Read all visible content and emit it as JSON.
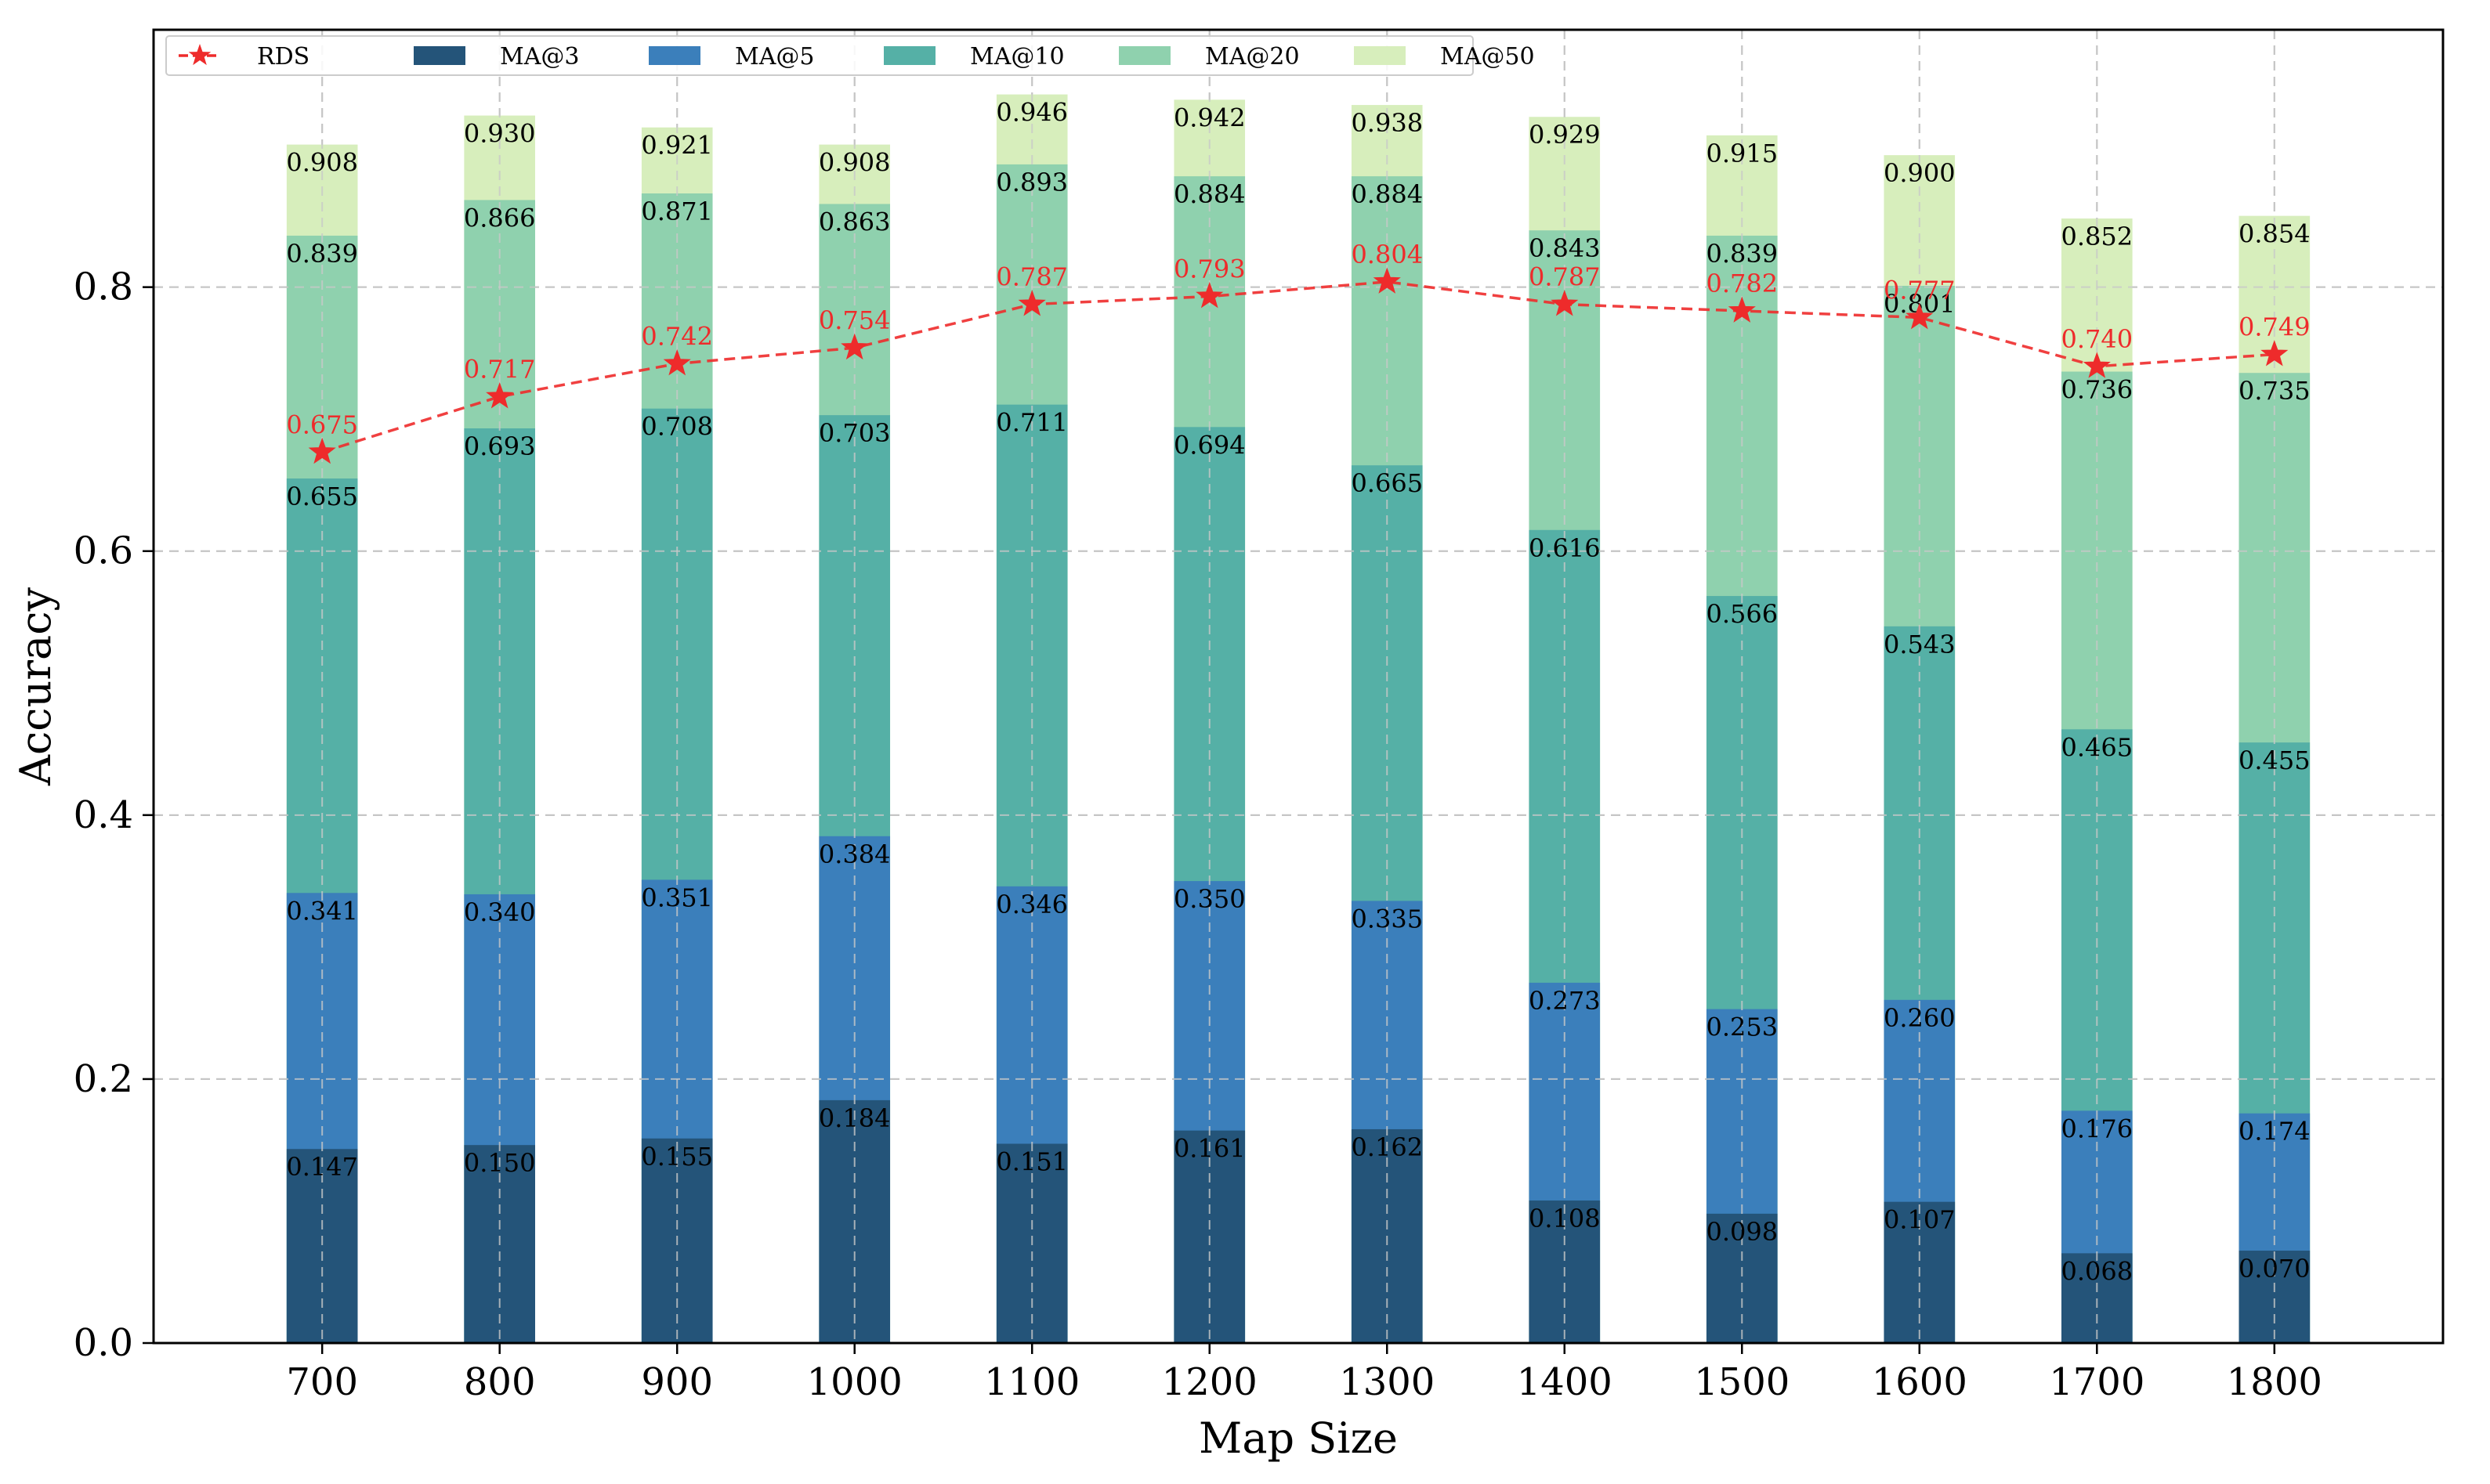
{
  "chart_data": {
    "type": "bar",
    "stacked": false,
    "overlapping_bars": true,
    "title": "",
    "xlabel": "Map Size",
    "ylabel": "Accuracy",
    "ylim": [
      0,
      0.995
    ],
    "yticks": [
      0.0,
      0.2,
      0.4,
      0.6,
      0.8
    ],
    "ytick_labels": [
      "0.0",
      "0.2",
      "0.4",
      "0.6",
      "0.8"
    ],
    "grid": true,
    "legend_position": "top-left",
    "categories": [
      "700",
      "800",
      "900",
      "1000",
      "1100",
      "1200",
      "1300",
      "1400",
      "1500",
      "1600",
      "1700",
      "1800"
    ],
    "series": [
      {
        "name": "MA@50",
        "kind": "bar",
        "color": "#d7eebc",
        "values": [
          0.908,
          0.93,
          0.921,
          0.908,
          0.946,
          0.942,
          0.938,
          0.929,
          0.915,
          0.9,
          0.852,
          0.854
        ],
        "labels": [
          "0.908",
          "0.930",
          "0.921",
          "0.908",
          "0.946",
          "0.942",
          "0.938",
          "0.929",
          "0.915",
          "0.900",
          "0.852",
          "0.854"
        ]
      },
      {
        "name": "MA@20",
        "kind": "bar",
        "color": "#8fd1ae",
        "values": [
          0.839,
          0.866,
          0.871,
          0.863,
          0.893,
          0.884,
          0.884,
          0.843,
          0.839,
          0.801,
          0.736,
          0.735
        ],
        "labels": [
          "0.839",
          "0.866",
          "0.871",
          "0.863",
          "0.893",
          "0.884",
          "0.884",
          "0.843",
          "0.839",
          "0.801",
          "0.736",
          "0.735"
        ]
      },
      {
        "name": "MA@10",
        "kind": "bar",
        "color": "#55b0a6",
        "values": [
          0.655,
          0.693,
          0.708,
          0.703,
          0.711,
          0.694,
          0.665,
          0.616,
          0.566,
          0.543,
          0.465,
          0.455
        ],
        "labels": [
          "0.655",
          "0.693",
          "0.708",
          "0.703",
          "0.711",
          "0.694",
          "0.665",
          "0.616",
          "0.566",
          "0.543",
          "0.465",
          "0.455"
        ]
      },
      {
        "name": "MA@5",
        "kind": "bar",
        "color": "#3b7fbb",
        "values": [
          0.341,
          0.34,
          0.351,
          0.384,
          0.346,
          0.35,
          0.335,
          0.273,
          0.253,
          0.26,
          0.176,
          0.174
        ],
        "labels": [
          "0.341",
          "0.340",
          "0.351",
          "0.384",
          "0.346",
          "0.350",
          "0.335",
          "0.273",
          "0.253",
          "0.260",
          "0.176",
          "0.174"
        ]
      },
      {
        "name": "MA@3",
        "kind": "bar",
        "color": "#245479",
        "values": [
          0.147,
          0.15,
          0.155,
          0.184,
          0.151,
          0.161,
          0.162,
          0.108,
          0.098,
          0.107,
          0.068,
          0.07
        ],
        "labels": [
          "0.147",
          "0.150",
          "0.155",
          "0.184",
          "0.151",
          "0.161",
          "0.162",
          "0.108",
          "0.098",
          "0.107",
          "0.068",
          "0.070"
        ]
      },
      {
        "name": "RDS",
        "kind": "line",
        "color": "#ee2b2b",
        "marker": "star",
        "linestyle": "dashed",
        "values": [
          0.675,
          0.717,
          0.742,
          0.754,
          0.787,
          0.793,
          0.804,
          0.787,
          0.782,
          0.777,
          0.74,
          0.749
        ],
        "labels": [
          "0.675",
          "0.717",
          "0.742",
          "0.754",
          "0.787",
          "0.793",
          "0.804",
          "0.787",
          "0.782",
          "0.777",
          "0.740",
          "0.749"
        ]
      }
    ],
    "legend": [
      {
        "name": "RDS",
        "color": "#ee2b2b",
        "kind": "line"
      },
      {
        "name": "MA@3",
        "color": "#245479",
        "kind": "bar"
      },
      {
        "name": "MA@5",
        "color": "#3b7fbb",
        "kind": "bar"
      },
      {
        "name": "MA@10",
        "color": "#55b0a6",
        "kind": "bar"
      },
      {
        "name": "MA@20",
        "color": "#8fd1ae",
        "kind": "bar"
      },
      {
        "name": "MA@50",
        "color": "#d7eebc",
        "kind": "bar"
      }
    ]
  }
}
